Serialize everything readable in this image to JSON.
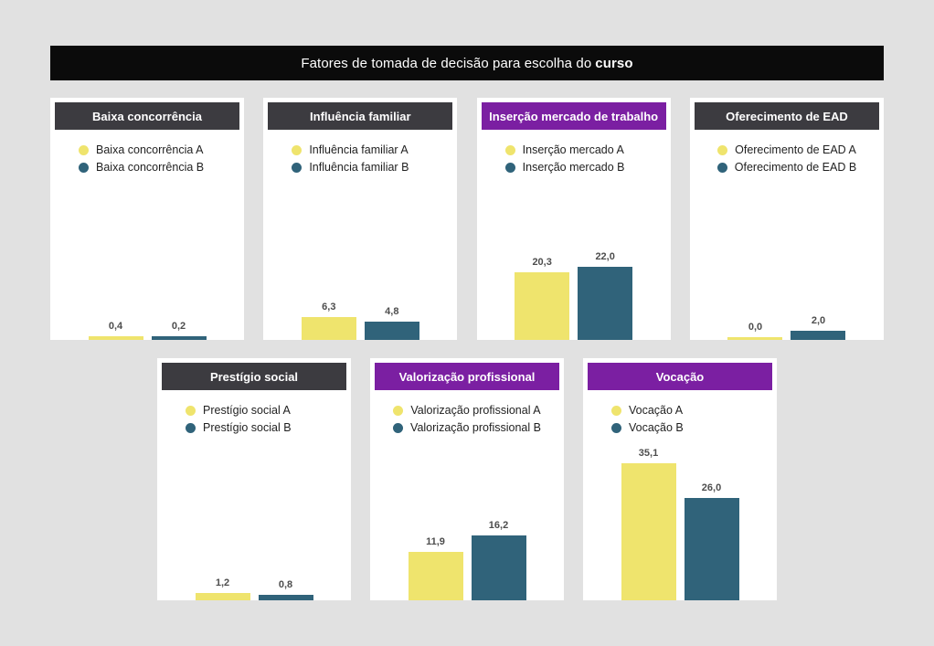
{
  "header": {
    "title_prefix": "Fatores de tomada de decisão para escolha do",
    "title_bold": "curso"
  },
  "colors": {
    "page_background": "#e1e1e1",
    "title_bar": "#0b0b0b",
    "panel_header": {
      "dark": "#3c3b40",
      "purple": "#7b1fa2"
    },
    "series": [
      "#efe46d",
      "#30637a"
    ],
    "value_label": "#4d4d4d"
  },
  "chart_data": [
    {
      "type": "bar",
      "title": "Baixa concorrência",
      "header_style": "dark",
      "legend_position": "top",
      "categories": [
        "Baixa concorrência A",
        "Baixa concorrência B"
      ],
      "series": [
        {
          "name": "Baixa concorrência A",
          "value": 0.4,
          "label": "0,4"
        },
        {
          "name": "Baixa concorrência B",
          "value": 0.2,
          "label": "0,2"
        }
      ]
    },
    {
      "type": "bar",
      "title": "Influência familiar",
      "header_style": "dark",
      "legend_position": "top",
      "categories": [
        "Influência familiar A",
        "Influência familiar B"
      ],
      "series": [
        {
          "name": "Influência familiar A",
          "value": 6.3,
          "label": "6,3"
        },
        {
          "name": "Influência familiar B",
          "value": 4.8,
          "label": "4,8"
        }
      ]
    },
    {
      "type": "bar",
      "title": "Inserção mercado de trabalho",
      "header_style": "purple",
      "legend_position": "top",
      "categories": [
        "Inserção mercado A",
        "Inserção mercado B"
      ],
      "series": [
        {
          "name": "Inserção mercado A",
          "value": 20.3,
          "label": "20,3"
        },
        {
          "name": "Inserção mercado B",
          "value": 22.0,
          "label": "22,0"
        }
      ]
    },
    {
      "type": "bar",
      "title": "Oferecimento de EAD",
      "header_style": "dark",
      "legend_position": "top",
      "categories": [
        "Oferecimento de EAD A",
        "Oferecimento de EAD B"
      ],
      "series": [
        {
          "name": "Oferecimento de EAD A",
          "value": 0.0,
          "label": "0,0"
        },
        {
          "name": "Oferecimento de EAD B",
          "value": 2.0,
          "label": "2,0"
        }
      ]
    },
    {
      "type": "bar",
      "title": "Prestígio social",
      "header_style": "dark",
      "legend_position": "top",
      "categories": [
        "Prestígio social A",
        "Prestígio social B"
      ],
      "series": [
        {
          "name": "Prestígio social A",
          "value": 1.2,
          "label": "1,2"
        },
        {
          "name": "Prestígio social B",
          "value": 0.8,
          "label": "0,8"
        }
      ]
    },
    {
      "type": "bar",
      "title": "Valorização profissional",
      "header_style": "purple",
      "legend_position": "top",
      "categories": [
        "Valorização profissional A",
        "Valorização profissional B"
      ],
      "series": [
        {
          "name": "Valorização profissional A",
          "value": 11.9,
          "label": "11,9"
        },
        {
          "name": "Valorização profissional B",
          "value": 16.2,
          "label": "16,2"
        }
      ]
    },
    {
      "type": "bar",
      "title": "Vocação",
      "header_style": "purple",
      "legend_position": "top",
      "categories": [
        "Vocação A",
        "Vocação B"
      ],
      "series": [
        {
          "name": "Vocação A",
          "value": 35.1,
          "label": "35,1"
        },
        {
          "name": "Vocação B",
          "value": 26.0,
          "label": "26,0"
        }
      ]
    }
  ]
}
